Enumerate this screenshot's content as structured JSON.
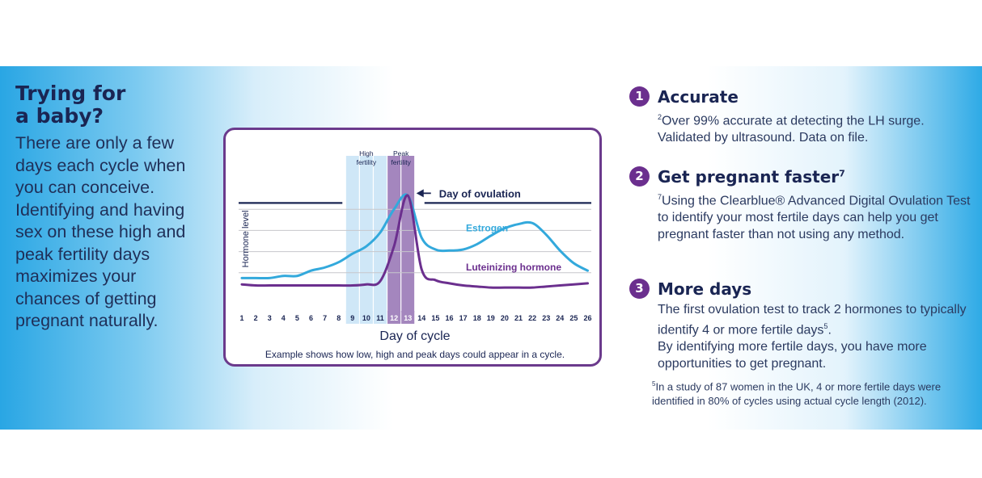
{
  "headline": {
    "line1": "Trying for",
    "line2": "a baby?"
  },
  "intro": "There are only a few days each cycle when you can conceive. Identifying and having sex on these high and peak fertility days maximizes your chances of getting pregnant naturally.",
  "colors": {
    "brand_purple": "#6b2f8e",
    "navy": "#1a2553",
    "estrogen": "#33a9dc",
    "lh": "#6b2f8e",
    "high_band": "#cfe7f7",
    "peak_band": "#a486be"
  },
  "chart_data": {
    "type": "line",
    "title": "",
    "xlabel": "Day of cycle",
    "ylabel": "Hormone level",
    "x": [
      1,
      2,
      3,
      4,
      5,
      6,
      7,
      8,
      9,
      10,
      11,
      12,
      13,
      14,
      15,
      16,
      17,
      18,
      19,
      20,
      21,
      22,
      23,
      24,
      25,
      26
    ],
    "tick_labels": [
      "1",
      "2",
      "3",
      "4",
      "5",
      "6",
      "7",
      "8",
      "9",
      "10",
      "11",
      "12",
      "13",
      "14",
      "15",
      "16",
      "17",
      "18",
      "19",
      "20",
      "21",
      "22",
      "23",
      "24",
      "25",
      "26"
    ],
    "ylim": [
      0,
      10
    ],
    "grid": true,
    "series": [
      {
        "name": "Estrogen",
        "color": "#33a9dc",
        "values": [
          1.5,
          1.5,
          1.5,
          1.7,
          1.7,
          2.2,
          2.5,
          3.0,
          3.8,
          4.5,
          5.8,
          8.0,
          9.3,
          5.3,
          4.2,
          4.1,
          4.2,
          4.7,
          5.5,
          6.2,
          6.6,
          6.7,
          5.6,
          4.1,
          2.9,
          2.2
        ]
      },
      {
        "name": "Luteinizing hormone",
        "color": "#6b2f8e",
        "values": [
          0.9,
          0.8,
          0.8,
          0.8,
          0.8,
          0.8,
          0.8,
          0.8,
          0.8,
          0.9,
          1.2,
          4.5,
          9.3,
          2.3,
          1.3,
          1.0,
          0.8,
          0.7,
          0.6,
          0.6,
          0.6,
          0.6,
          0.7,
          0.8,
          0.9,
          1.0
        ]
      }
    ],
    "bands": [
      {
        "label_line1": "High",
        "label_line2": "fertility",
        "days": [
          9,
          10,
          11
        ]
      },
      {
        "label_line1": "Peak",
        "label_line2": "fertility",
        "days": [
          12,
          13
        ]
      }
    ],
    "annotations": {
      "ovulation_day": 13,
      "ovulation_label": "Day of ovulation",
      "ovulation_level": 8.6,
      "estrogen_label_day": 17.2,
      "estrogen_label_value": 5.9,
      "lh_label_day": 17.2,
      "lh_label_value": 2.2
    },
    "caption": "Example shows how low, high and peak days could appear in a cycle."
  },
  "points": [
    {
      "number": "1",
      "title": "Accurate",
      "title_sup": "",
      "body": [
        {
          "sup": "2",
          "text": "Over 99% accurate at detecting the LH surge."
        },
        {
          "sup": "",
          "text": "Validated by ultrasound. Data on file."
        }
      ],
      "footnote": null
    },
    {
      "number": "2",
      "title": "Get pregnant faster",
      "title_sup": "7",
      "body": [
        {
          "sup": "7",
          "text": "Using the Clearblue® Advanced Digital Ovulation Test to identify your most fertile days can help you get pregnant faster than not using any method."
        }
      ],
      "footnote": null
    },
    {
      "number": "3",
      "title": "More days",
      "title_sup": "",
      "body": [
        {
          "sup": "",
          "text": "The first ovulation test to track 2 hormones to typically identify 4 or more fertile days",
          "post_sup": "5",
          "tail": "."
        },
        {
          "sup": "",
          "text": "By identifying more fertile days, you have more opportunities to get pregnant."
        }
      ],
      "footnote": {
        "sup": "5",
        "text": "In a study of 87 women in the UK, 4 or more fertile days were identified in 80% of cycles using actual cycle length (2012)."
      }
    }
  ]
}
